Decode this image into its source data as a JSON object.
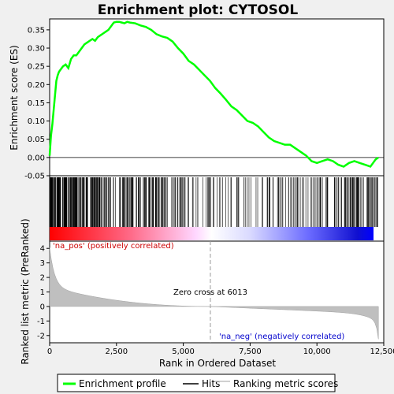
{
  "chart_data": {
    "type": "line",
    "title": "Enrichment plot: CYTOSOL",
    "xlabel": "Rank in Ordered Dataset",
    "ylabel_top": "Enrichment score (ES)",
    "ylabel_bottom": "Ranked list metric (PreRanked)",
    "x_range": [
      0,
      12500
    ],
    "x_ticks": [
      "0",
      "2,500",
      "5,000",
      "7,500",
      "10,000",
      "12,500"
    ],
    "x_tick_values": [
      0,
      2500,
      5000,
      7500,
      10000,
      12500
    ],
    "es_ylim": [
      -0.05,
      0.38
    ],
    "es_y_ticks": [
      "-0.05",
      "0.00",
      "0.05",
      "0.10",
      "0.15",
      "0.20",
      "0.25",
      "0.30",
      "0.35"
    ],
    "es_y_tick_values": [
      -0.05,
      0,
      0.05,
      0.1,
      0.15,
      0.2,
      0.25,
      0.3,
      0.35
    ],
    "metric_ylim": [
      -2.5,
      4.5
    ],
    "metric_y_ticks": [
      "-2",
      "-1",
      "0",
      "1",
      "2",
      "3",
      "4"
    ],
    "metric_y_tick_values": [
      -2,
      -1,
      0,
      1,
      2,
      3,
      4
    ],
    "n_genes": 12300,
    "zero_cross": 6013,
    "es_curve": {
      "x": [
        0,
        50,
        100,
        150,
        200,
        250,
        300,
        350,
        400,
        500,
        600,
        700,
        800,
        900,
        1000,
        1100,
        1200,
        1300,
        1400,
        1500,
        1600,
        1700,
        1800,
        1900,
        2000,
        2100,
        2200,
        2300,
        2400,
        2500,
        2600,
        2700,
        2800,
        2900,
        3000,
        3200,
        3400,
        3600,
        3800,
        4000,
        4200,
        4400,
        4600,
        4800,
        5000,
        5200,
        5400,
        5600,
        5800,
        6000,
        6200,
        6400,
        6600,
        6800,
        7000,
        7200,
        7400,
        7600,
        7800,
        8000,
        8200,
        8400,
        8600,
        8800,
        9000,
        9200,
        9400,
        9600,
        9800,
        10000,
        10200,
        10400,
        10600,
        10800,
        11000,
        11200,
        11400,
        11600,
        11800,
        12000,
        12100,
        12200,
        12300
      ],
      "y": [
        0.005,
        0.06,
        0.09,
        0.13,
        0.17,
        0.21,
        0.225,
        0.235,
        0.24,
        0.25,
        0.255,
        0.245,
        0.27,
        0.28,
        0.28,
        0.29,
        0.3,
        0.31,
        0.315,
        0.32,
        0.325,
        0.32,
        0.33,
        0.335,
        0.34,
        0.345,
        0.35,
        0.36,
        0.37,
        0.372,
        0.372,
        0.37,
        0.368,
        0.372,
        0.37,
        0.368,
        0.362,
        0.358,
        0.35,
        0.338,
        0.332,
        0.328,
        0.318,
        0.3,
        0.285,
        0.265,
        0.255,
        0.24,
        0.225,
        0.21,
        0.19,
        0.175,
        0.158,
        0.14,
        0.13,
        0.115,
        0.1,
        0.095,
        0.085,
        0.07,
        0.055,
        0.045,
        0.04,
        0.035,
        0.035,
        0.025,
        0.015,
        0.005,
        -0.01,
        -0.015,
        -0.01,
        -0.005,
        -0.01,
        -0.02,
        -0.025,
        -0.015,
        -0.01,
        -0.015,
        -0.02,
        -0.025,
        -0.015,
        -0.005,
        0.0
      ]
    },
    "legend": [
      {
        "name": "Enrichment profile",
        "color": "#00ff00"
      },
      {
        "name": "Hits",
        "color": "#000000"
      },
      {
        "name": "Ranking metric scores",
        "color": "#c0c0c0"
      }
    ],
    "annotations": {
      "pos_label": "'na_pos' (positively correlated)",
      "neg_label": "'na_neg' (negatively correlated)",
      "zero_cross_label": "Zero cross at 6013"
    },
    "colors": {
      "curve": "#00ff00",
      "pos_text": "#cc0000",
      "neg_text": "#0000cc",
      "metric_fill": "#bfbfbf"
    }
  }
}
